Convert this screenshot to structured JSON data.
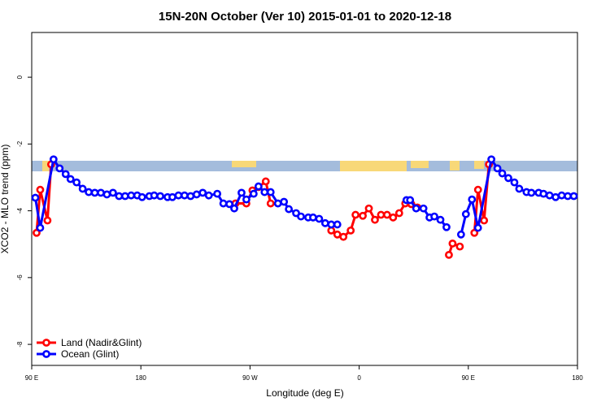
{
  "chart_data": {
    "type": "line",
    "title": "15N-20N October (Ver 10)   2015-01-01 to 2020-12-18",
    "x_label": "Longitude (deg E)",
    "y_label": "XCO2 - MLO trend (ppm)",
    "xlim": [
      90,
      540
    ],
    "ylim": [
      -8.63,
      1.34
    ],
    "xticks": [
      {
        "value": 90,
        "label": "90 E"
      },
      180,
      {
        "value": 270,
        "label": "90 W"
      },
      {
        "value": 360,
        "label": "0"
      },
      {
        "value": 450,
        "label": "90 E"
      },
      {
        "value": 540,
        "label": "180"
      }
    ],
    "yticks": [
      0,
      -2,
      -4,
      -6,
      -8
    ],
    "legend": "bottom-left",
    "series": [
      {
        "name": "Land (Nadir&Glint)",
        "color": "#ff0000",
        "x": [
          94,
          97,
          103,
          106,
          null,
          258,
          267,
          272,
          277,
          283,
          287,
          null,
          337,
          342,
          347,
          353,
          357,
          363,
          368,
          373,
          378,
          383,
          388,
          393,
          398,
          403,
          408,
          null,
          434,
          437,
          443,
          null,
          455,
          458,
          463,
          467
        ],
        "values": [
          -4.66,
          -3.37,
          -4.29,
          -2.61,
          null,
          -3.78,
          -3.78,
          -3.39,
          -3.29,
          -3.12,
          -3.78,
          null,
          -4.59,
          -4.71,
          -4.78,
          -4.59,
          -4.12,
          -4.15,
          -3.93,
          -4.27,
          -4.12,
          -4.12,
          -4.2,
          -4.07,
          -3.78,
          -3.8,
          -3.9,
          null,
          -5.32,
          -4.98,
          -5.07,
          null,
          -4.66,
          -3.37,
          -4.29,
          -2.61
        ]
      },
      {
        "name": "Ocean (Glint)",
        "color": "#0000ff",
        "x": [
          93,
          97,
          108,
          113,
          118,
          122,
          127,
          132,
          137,
          142,
          147,
          152,
          157,
          162,
          167,
          172,
          177,
          181,
          187,
          191,
          196,
          202,
          206,
          211,
          216,
          221,
          226,
          231,
          236,
          243,
          248,
          253,
          257,
          263,
          267,
          273,
          277,
          282,
          287,
          293,
          298,
          302,
          308,
          312,
          318,
          322,
          327,
          332,
          337,
          342,
          null,
          399,
          402,
          407,
          413,
          418,
          422,
          427,
          432,
          null,
          444,
          448,
          453,
          458,
          469,
          474,
          478,
          483,
          488,
          492,
          498,
          502,
          508,
          512,
          517,
          522,
          527,
          532,
          537
        ],
        "values": [
          -3.61,
          -4.51,
          -2.46,
          -2.73,
          -2.9,
          -3.05,
          -3.15,
          -3.34,
          -3.44,
          -3.46,
          -3.46,
          -3.51,
          -3.46,
          -3.56,
          -3.56,
          -3.54,
          -3.54,
          -3.59,
          -3.56,
          -3.54,
          -3.56,
          -3.59,
          -3.59,
          -3.54,
          -3.54,
          -3.56,
          -3.51,
          -3.46,
          -3.54,
          -3.49,
          -3.78,
          -3.8,
          -3.93,
          -3.46,
          -3.66,
          -3.49,
          -3.27,
          -3.44,
          -3.44,
          -3.78,
          -3.73,
          -3.95,
          -4.07,
          -4.17,
          -4.2,
          -4.2,
          -4.24,
          -4.37,
          -4.41,
          -4.41,
          null,
          -3.68,
          -3.68,
          -3.93,
          -3.93,
          -4.2,
          -4.17,
          -4.27,
          -4.49,
          null,
          -4.71,
          -4.1,
          -3.66,
          -4.51,
          -2.46,
          -2.73,
          -2.88,
          -3.02,
          -3.15,
          -3.34,
          -3.44,
          -3.46,
          -3.46,
          -3.49,
          -3.54,
          -3.59,
          -3.54,
          -3.56,
          -3.56
        ]
      }
    ]
  }
}
